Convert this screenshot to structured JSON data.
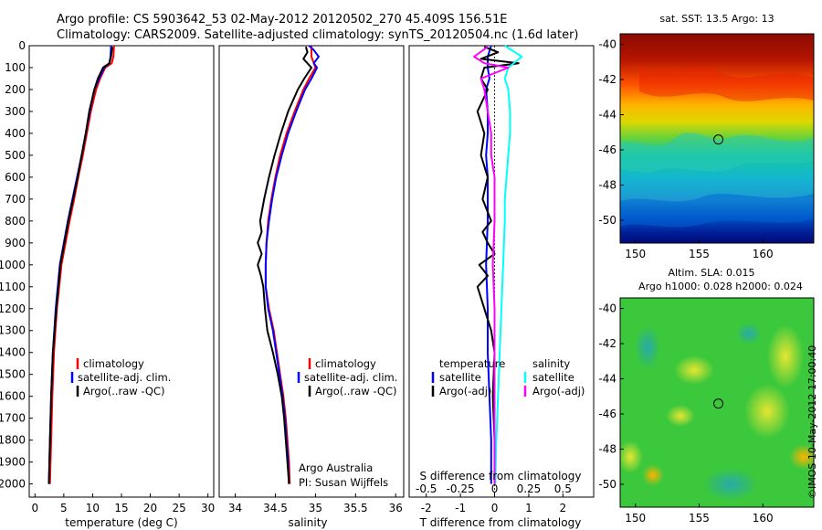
{
  "title_line1": "Argo profile: CS 5903642_53 02-May-2012 20120502_270 45.409S 156.51E",
  "title_line2": "Climatology: CARS2009. Satellite-adjusted climatology: synTS_20120504.nc (1.6d later)",
  "colors": {
    "climatology": "#ff0000",
    "satellite": "#0000ff",
    "argo": "#000000",
    "sal_satellite": "#00ffff",
    "sal_argo": "#ff00ff"
  },
  "depth_axis": {
    "ticks": [
      0,
      100,
      200,
      300,
      400,
      500,
      600,
      700,
      800,
      900,
      1000,
      1100,
      1200,
      1300,
      1400,
      1500,
      1600,
      1700,
      1800,
      1900,
      2000
    ],
    "ylim": [
      0,
      2060
    ]
  },
  "chart_data": [
    {
      "type": "line",
      "id": "temperature",
      "xlabel": "temperature (deg C)",
      "xlim": [
        -1,
        31
      ],
      "xticks": [
        0,
        5,
        10,
        15,
        20,
        25,
        30
      ],
      "legend": [
        "climatology",
        "satellite-adj. clim.",
        "Argo(..raw -QC)"
      ],
      "series": [
        {
          "name": "climatology",
          "color": "#ff0000",
          "depth": [
            0,
            50,
            80,
            100,
            150,
            200,
            300,
            400,
            500,
            600,
            700,
            800,
            900,
            1000,
            1200,
            1400,
            1600,
            1800,
            2000
          ],
          "values": [
            13.7,
            13.6,
            13.3,
            12.2,
            11.3,
            10.6,
            9.7,
            9.0,
            8.3,
            7.5,
            6.8,
            6.0,
            5.3,
            4.6,
            3.8,
            3.3,
            3.0,
            2.8,
            2.6
          ]
        },
        {
          "name": "satellite-adj. clim.",
          "color": "#0000ff",
          "depth": [
            0,
            50,
            80,
            100,
            150,
            200,
            300,
            400,
            500,
            600,
            700,
            800,
            900,
            1000,
            1200,
            1400,
            1600,
            1800,
            2000
          ],
          "values": [
            13.2,
            13.1,
            12.9,
            12.0,
            11.1,
            10.3,
            9.5,
            8.8,
            8.1,
            7.3,
            6.5,
            5.7,
            5.0,
            4.3,
            3.6,
            3.1,
            2.8,
            2.6,
            2.4
          ]
        },
        {
          "name": "Argo(..raw -QC)",
          "color": "#000000",
          "depth": [
            5,
            50,
            80,
            100,
            150,
            200,
            300,
            400,
            500,
            600,
            700,
            800,
            900,
            1000,
            1200,
            1400,
            1600,
            1800,
            2000
          ],
          "values": [
            13.4,
            13.2,
            12.9,
            11.8,
            10.9,
            10.3,
            9.4,
            8.8,
            8.1,
            7.4,
            6.6,
            5.8,
            5.1,
            4.4,
            3.7,
            3.1,
            2.8,
            2.6,
            2.4
          ]
        }
      ]
    },
    {
      "type": "line",
      "id": "salinity",
      "xlabel": "salinity",
      "xlim": [
        33.8,
        36.1
      ],
      "xticks": [
        34,
        34.5,
        35,
        35.5,
        36
      ],
      "legend": [
        "climatology",
        "satellite-adj. clim.",
        "Argo(..raw -QC)"
      ],
      "annotation": [
        "Argo Australia",
        "PI: Susan Wijffels"
      ],
      "series": [
        {
          "name": "climatology",
          "color": "#ff0000",
          "depth": [
            0,
            50,
            100,
            150,
            200,
            300,
            400,
            500,
            600,
            700,
            800,
            900,
            1000,
            1100,
            1200,
            1300,
            1400,
            1500,
            1600,
            1700,
            1800,
            1900,
            2000
          ],
          "values": [
            34.95,
            34.95,
            35.0,
            34.92,
            34.85,
            34.74,
            34.64,
            34.56,
            34.5,
            34.45,
            34.41,
            34.39,
            34.38,
            34.38,
            34.42,
            34.48,
            34.52,
            34.56,
            34.6,
            34.63,
            34.65,
            34.67,
            34.68
          ]
        },
        {
          "name": "satellite-adj. clim.",
          "color": "#0000ff",
          "depth": [
            0,
            20,
            50,
            80,
            100,
            150,
            200,
            300,
            400,
            500,
            600,
            700,
            800,
            900,
            1000,
            1100,
            1200,
            1300,
            1400,
            1500,
            1600,
            1700,
            1800,
            1900,
            2000
          ],
          "values": [
            34.92,
            34.98,
            35.04,
            34.98,
            35.02,
            34.95,
            34.87,
            34.76,
            34.66,
            34.58,
            34.51,
            34.46,
            34.42,
            34.39,
            34.38,
            34.38,
            34.41,
            34.47,
            34.51,
            34.55,
            34.59,
            34.62,
            34.64,
            34.66,
            34.67
          ]
        },
        {
          "name": "Argo(..raw -QC)",
          "color": "#000000",
          "depth": [
            5,
            30,
            60,
            80,
            100,
            150,
            200,
            300,
            400,
            500,
            600,
            700,
            800,
            850,
            900,
            950,
            1000,
            1050,
            1100,
            1200,
            1300,
            1400,
            1500,
            1600,
            1700,
            1800,
            1900,
            2000
          ],
          "values": [
            34.88,
            34.9,
            34.85,
            34.9,
            34.95,
            34.86,
            34.78,
            34.66,
            34.57,
            34.49,
            34.42,
            34.36,
            34.31,
            34.33,
            34.28,
            34.33,
            34.28,
            34.32,
            34.35,
            34.37,
            34.4,
            34.47,
            34.53,
            34.58,
            34.61,
            34.63,
            34.65,
            34.67
          ]
        }
      ]
    },
    {
      "type": "line",
      "id": "difference",
      "xlabel": "T difference from climatology",
      "xlabel_top": "S difference from climatology",
      "xlim": [
        -2.5,
        2.9
      ],
      "xticks": [
        -2,
        -1,
        0,
        1,
        2
      ],
      "xticks_top": [
        "-0.5",
        "-0.25",
        "0",
        "0.25",
        "0.5"
      ],
      "legend_temperature": {
        "header": "temperature",
        "items": [
          "satellite",
          "Argo(-adj)"
        ]
      },
      "legend_salinity": {
        "header": "salinity",
        "items": [
          "satellite",
          "Argo(-adj)"
        ]
      },
      "series": [
        {
          "name": "T satellite",
          "color": "#0000ff",
          "depth": [
            0,
            50,
            100,
            150,
            200,
            300,
            400,
            500,
            600,
            700,
            800,
            1000,
            1200,
            1400,
            1600,
            1800,
            2000
          ],
          "values": [
            -0.1,
            -0.2,
            -0.2,
            -0.15,
            -0.25,
            -0.2,
            -0.2,
            -0.25,
            -0.2,
            -0.2,
            -0.2,
            -0.25,
            -0.2,
            -0.2,
            -0.15,
            -0.1,
            -0.1
          ]
        },
        {
          "name": "T Argo(-adj)",
          "color": "#000000",
          "depth": [
            5,
            30,
            60,
            80,
            100,
            150,
            200,
            300,
            400,
            500,
            600,
            700,
            800,
            850,
            900,
            950,
            1000,
            1050,
            1100,
            1200,
            1300,
            1400,
            1600,
            1800,
            2000
          ],
          "values": [
            -0.3,
            0.1,
            -0.4,
            0.7,
            -0.3,
            -0.4,
            -0.2,
            -0.5,
            -0.3,
            -0.4,
            -0.2,
            -0.35,
            -0.1,
            -0.35,
            -0.2,
            0.0,
            -0.45,
            -0.2,
            -0.5,
            -0.3,
            -0.1,
            0.0,
            -0.05,
            0.0,
            0.0
          ]
        },
        {
          "name": "S satellite",
          "color": "#00ffff",
          "depth": [
            0,
            50,
            100,
            150,
            200,
            300,
            400,
            500,
            600,
            700,
            800,
            1000,
            1200,
            1400,
            1600,
            1800,
            2000
          ],
          "values": [
            0.3,
            0.8,
            0.4,
            0.3,
            0.4,
            0.45,
            0.45,
            0.4,
            0.35,
            0.3,
            0.3,
            0.25,
            0.2,
            0.15,
            0.1,
            0.05,
            0.02
          ]
        },
        {
          "name": "S Argo(-adj)",
          "color": "#ff00ff",
          "depth": [
            5,
            50,
            80,
            100,
            150,
            200,
            300,
            400,
            500,
            600,
            800,
            1000,
            1200,
            1400,
            1600,
            1800,
            2000
          ],
          "values": [
            -0.2,
            -0.6,
            -0.3,
            0.4,
            -0.4,
            -0.3,
            -0.2,
            -0.1,
            -0.1,
            0.0,
            0.0,
            -0.05,
            0.0,
            0.0,
            0.0,
            0.0,
            0.0
          ]
        }
      ]
    },
    {
      "type": "heatmap",
      "id": "sst_map",
      "title": "sat. SST: 13.5 Argo: 13",
      "xticks": [
        150,
        155,
        160
      ],
      "yticks": [
        -40,
        -42,
        -44,
        -46,
        -48,
        -50
      ],
      "xlim": [
        148.8,
        164
      ],
      "ylim": [
        -51.3,
        -39.4
      ],
      "marker": {
        "lon": 156.51,
        "lat": -45.409
      }
    },
    {
      "type": "heatmap",
      "id": "sla_map",
      "title_line1": "Altim. SLA: 0.015",
      "title_line2": "Argo h1000: 0.028 h2000: 0.024",
      "xticks": [
        150,
        155,
        160
      ],
      "yticks": [
        -40,
        -42,
        -44,
        -46,
        -48,
        -50
      ],
      "xlim": [
        148.8,
        164
      ],
      "ylim": [
        -51.3,
        -39.4
      ],
      "marker": {
        "lon": 156.51,
        "lat": -45.409
      }
    }
  ],
  "side_stamp": "©IMOS 10-May-2012 17:00:40"
}
